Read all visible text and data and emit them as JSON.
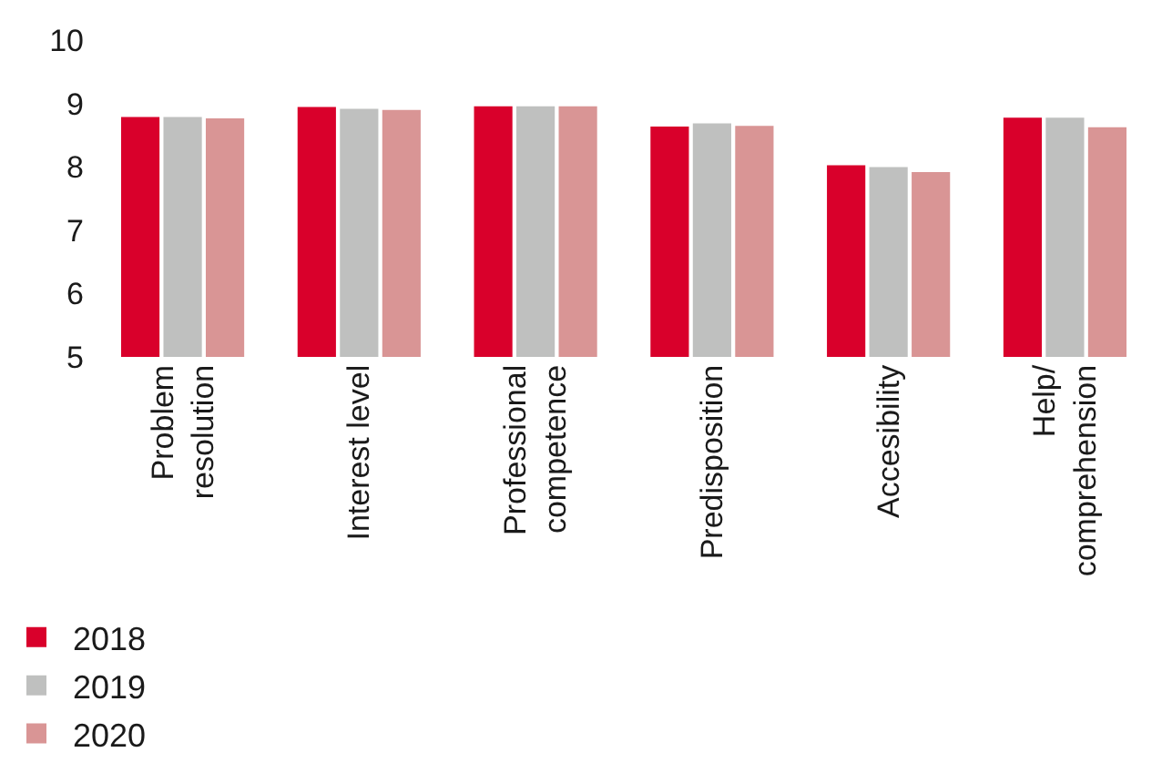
{
  "chart_data": {
    "type": "bar",
    "categories": [
      "Problem\nresolution",
      "Interest level",
      "Professional\ncompetence",
      "Predisposition",
      "Accesibility",
      "Help/\ncomprehension"
    ],
    "series": [
      {
        "name": "2018",
        "color": "#d9002b",
        "values": [
          8.8,
          8.96,
          8.97,
          8.65,
          8.04,
          8.79
        ]
      },
      {
        "name": "2019",
        "color": "#bfc0bf",
        "values": [
          8.8,
          8.93,
          8.97,
          8.7,
          8.01,
          8.79
        ]
      },
      {
        "name": "2020",
        "color": "#d99595",
        "values": [
          8.78,
          8.91,
          8.97,
          8.66,
          7.93,
          8.64
        ]
      }
    ],
    "ylim": [
      5,
      10
    ],
    "yticks": [
      5,
      6,
      7,
      8,
      9,
      10
    ],
    "grid": false,
    "legend": "bottom left"
  }
}
